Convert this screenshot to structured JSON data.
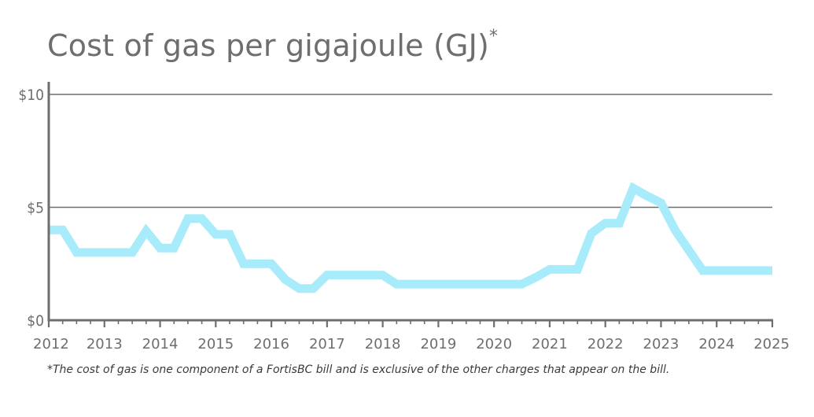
{
  "chart_data": {
    "type": "line",
    "title": "Cost of gas per gigajoule (GJ)",
    "title_mark": "*",
    "footnote": "*The cost of gas is one component of a FortisBC bill and is exclusive of the other charges that appear on the bill.",
    "xlim": [
      2012,
      2025
    ],
    "ylim": [
      0,
      10
    ],
    "x_ticks": [
      2012,
      2013,
      2014,
      2015,
      2016,
      2017,
      2018,
      2019,
      2020,
      2021,
      2022,
      2023,
      2024,
      2025
    ],
    "x_tick_labels": [
      "2012",
      "2013",
      "2014",
      "2015",
      "2016",
      "2017",
      "2018",
      "2019",
      "2020",
      "2021",
      "2022",
      "2023",
      "2024",
      "2025"
    ],
    "y_ticks": [
      0,
      5,
      10
    ],
    "y_tick_labels": [
      "$0",
      "$5",
      "$10"
    ],
    "grid": "horizontal",
    "line_color": "#a8ebfb",
    "series": [
      {
        "x": [
          2012.0,
          2012.25,
          2012.5,
          2012.75,
          2013.0,
          2013.25,
          2013.5,
          2013.75,
          2014.0,
          2014.25,
          2014.5,
          2014.75,
          2015.0,
          2015.25,
          2015.5,
          2015.75,
          2016.0,
          2016.25,
          2016.5,
          2016.75,
          2017.0,
          2017.25,
          2017.5,
          2017.75,
          2018.0,
          2018.25,
          2018.5,
          2018.75,
          2019.0,
          2019.25,
          2019.5,
          2019.75,
          2020.0,
          2020.25,
          2020.5,
          2020.75,
          2021.0,
          2021.25,
          2021.5,
          2021.75,
          2022.0,
          2022.25,
          2022.5,
          2022.75,
          2023.0,
          2023.25,
          2023.5,
          2023.75,
          2024.0,
          2024.25,
          2024.5,
          2024.75,
          2025.0
        ],
        "values": [
          4.0,
          4.0,
          3.0,
          3.0,
          3.0,
          3.0,
          3.0,
          3.95,
          3.2,
          3.2,
          4.5,
          4.5,
          3.8,
          3.8,
          2.5,
          2.5,
          2.5,
          1.8,
          1.4,
          1.4,
          2.0,
          2.0,
          2.0,
          2.0,
          2.0,
          1.6,
          1.6,
          1.6,
          1.6,
          1.6,
          1.6,
          1.6,
          1.6,
          1.6,
          1.6,
          1.9,
          2.25,
          2.25,
          2.25,
          3.85,
          4.3,
          4.3,
          5.85,
          5.5,
          5.2,
          4.0,
          3.1,
          2.2,
          2.2,
          2.2,
          2.2,
          2.2,
          2.2
        ]
      }
    ]
  }
}
